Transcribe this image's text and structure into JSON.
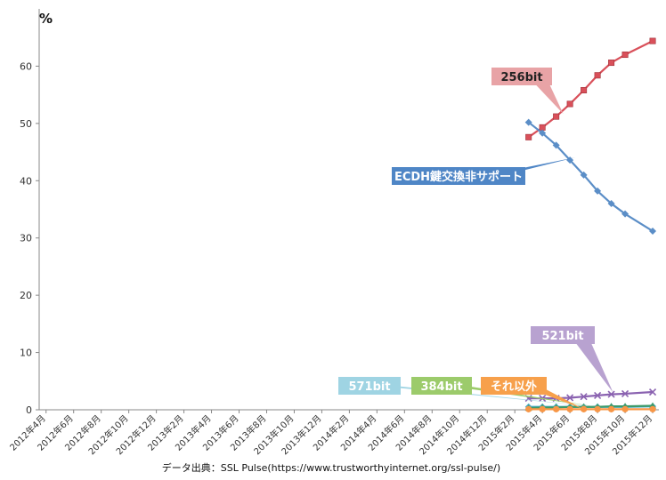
{
  "chart_data": {
    "type": "line",
    "ylabel": "%",
    "ylim": [
      0,
      70
    ],
    "y_ticks": [
      "0",
      "10",
      "20",
      "30",
      "40",
      "50",
      "60"
    ],
    "grid": false,
    "categories": [
      "2012年4月",
      "2012年6月",
      "2012年8月",
      "2012年10月",
      "2012年12月",
      "2013年2月",
      "2013年4月",
      "2013年6月",
      "2013年8月",
      "2013年10月",
      "2013年12月",
      "2014年2月",
      "2014年4月",
      "2014年6月",
      "2014年8月",
      "2014年10月",
      "2014年12月",
      "2015年2月",
      "2015年4月",
      "2015年6月",
      "2015年8月",
      "2015年10月",
      "2015年12月"
    ],
    "x": [
      "2015-03",
      "2015-04",
      "2015-05",
      "2015-06",
      "2015-07",
      "2015-08",
      "2015-09",
      "2015-10",
      "2015-11",
      "2015-12"
    ],
    "series": [
      {
        "name": "256bit",
        "color": "#d9505a",
        "marker": "square",
        "values": [
          47.6,
          49.3,
          51.2,
          53.4,
          55.8,
          58.4,
          60.6,
          62.0,
          null,
          64.4
        ]
      },
      {
        "name": "ECDH鍵交換非サポート",
        "color": "#5b8ec7",
        "marker": "diamond",
        "values": [
          50.2,
          48.3,
          46.2,
          43.6,
          41.0,
          38.2,
          36.0,
          34.2,
          null,
          31.2
        ]
      },
      {
        "name": "521bit",
        "color": "#8a62b0",
        "marker": "x",
        "values": [
          2.0,
          2.0,
          2.0,
          2.1,
          2.3,
          2.5,
          2.7,
          2.8,
          null,
          3.1
        ]
      },
      {
        "name": "571bit",
        "color": "#4aacc6",
        "marker": "diamond",
        "values": [
          0.5,
          0.5,
          0.5,
          0.5,
          0.5,
          0.5,
          0.5,
          0.5,
          null,
          0.6
        ]
      },
      {
        "name": "384bit",
        "color": "#3e9a6a",
        "marker": "triangle",
        "values": [
          0.3,
          0.4,
          0.4,
          0.5,
          0.5,
          0.5,
          0.6,
          0.6,
          null,
          0.7
        ]
      },
      {
        "name": "それ以外",
        "color": "#f79646",
        "marker": "circle",
        "values": [
          0.1,
          0.1,
          0.1,
          0.1,
          0.1,
          0.1,
          0.1,
          0.1,
          null,
          0.1
        ]
      }
    ],
    "callouts": [
      {
        "label": "256bit",
        "series": "256bit",
        "fill": "#e8a3a6",
        "text_color": "#222222"
      },
      {
        "label": "ECDH鍵交換非サポート",
        "series": "ECDH鍵交換非サポート",
        "fill": "#4f86c6",
        "text_color": "#ffffff"
      },
      {
        "label": "521bit",
        "series": "521bit",
        "fill": "#b8a2d0",
        "text_color": "#ffffff"
      },
      {
        "label": "571bit",
        "series": "571bit",
        "fill": "#9fd4e3",
        "text_color": "#ffffff"
      },
      {
        "label": "384bit",
        "series": "384bit",
        "fill": "#9ccb6b",
        "text_color": "#ffffff"
      },
      {
        "label": "それ以外",
        "series": "それ以外",
        "fill": "#f7a04b",
        "text_color": "#ffffff"
      }
    ],
    "source": "データ出典：SSL Pulse(https://www.trustworthyinternet.org/ssl-pulse/)"
  }
}
